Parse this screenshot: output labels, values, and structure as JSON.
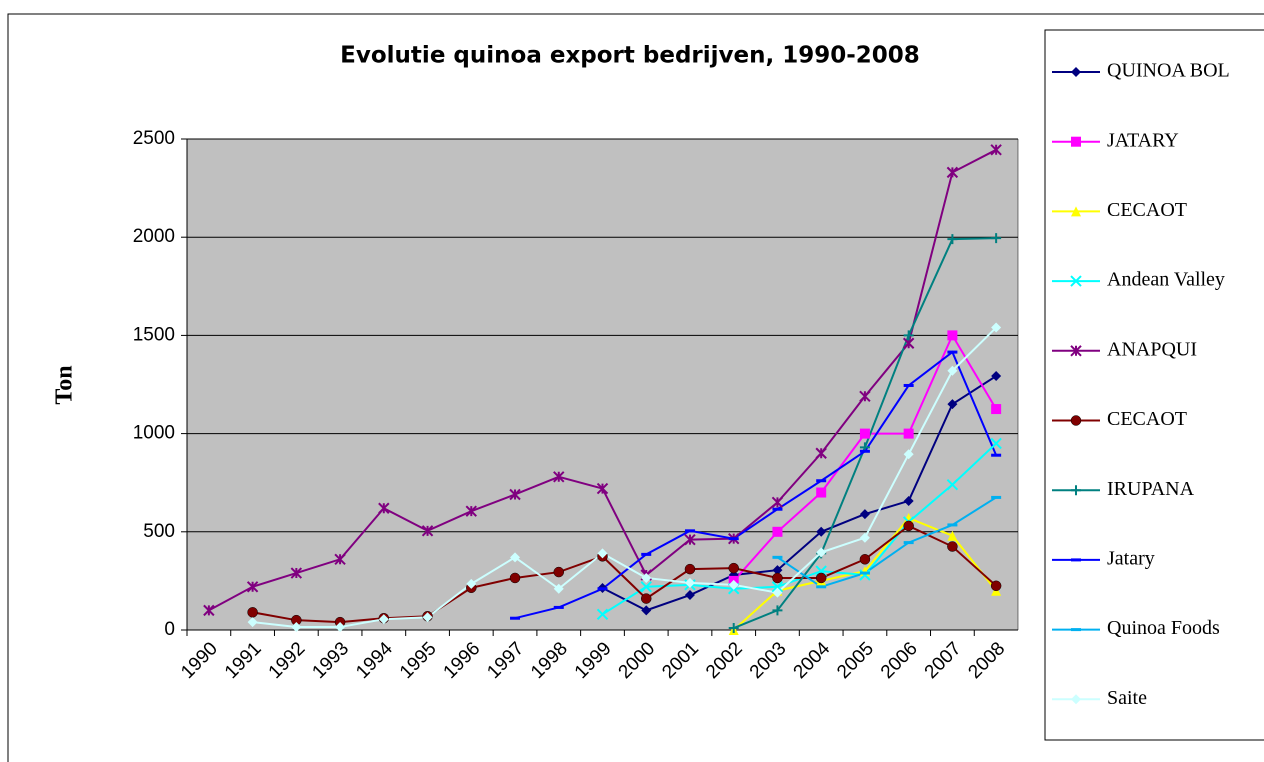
{
  "chart_data": {
    "type": "line",
    "title": "Evolutie quinoa export bedrijven, 1990-2008",
    "y_label": "Ton",
    "categories": [
      "1990",
      "1991",
      "1992",
      "1993",
      "1994",
      "1995",
      "1996",
      "1997",
      "1998",
      "1999",
      "2000",
      "2001",
      "2002",
      "2003",
      "2004",
      "2005",
      "2006",
      "2007",
      "2008"
    ],
    "ylim": [
      0,
      2500
    ],
    "yticks": [
      0,
      500,
      1000,
      1500,
      2000,
      2500
    ],
    "grid": true,
    "legend": "right",
    "series": [
      {
        "name": "QUINOA BOL",
        "color": "#000080",
        "marker": "diamond",
        "values": [
          null,
          null,
          null,
          null,
          null,
          null,
          null,
          null,
          null,
          214,
          100,
          178,
          280,
          305,
          500,
          590,
          657,
          1150,
          1293
        ]
      },
      {
        "name": "JATARY",
        "color": "#ff00ff",
        "marker": "square",
        "values": [
          null,
          null,
          null,
          null,
          null,
          null,
          null,
          null,
          null,
          null,
          null,
          null,
          250,
          500,
          700,
          1000,
          1000,
          1500,
          1125
        ]
      },
      {
        "name": "CECAOT",
        "color": "#ffff00",
        "marker": "triangle",
        "values": [
          null,
          null,
          null,
          null,
          null,
          null,
          null,
          null,
          null,
          null,
          null,
          null,
          0,
          200,
          250,
          300,
          570,
          480,
          200
        ]
      },
      {
        "name": "Andean Valley",
        "color": "#00ffff",
        "marker": "x",
        "values": [
          null,
          null,
          null,
          null,
          null,
          null,
          null,
          null,
          null,
          80,
          220,
          230,
          210,
          220,
          300,
          280,
          550,
          740,
          950
        ]
      },
      {
        "name": "ANAPQUI",
        "color": "#800080",
        "marker": "star",
        "values": [
          100,
          220,
          290,
          360,
          620,
          505,
          605,
          690,
          780,
          720,
          280,
          460,
          465,
          650,
          900,
          1190,
          1460,
          2330,
          2445
        ]
      },
      {
        "name": "CECAOT",
        "color": "#800000",
        "marker": "circle",
        "values": [
          null,
          90,
          50,
          40,
          60,
          70,
          215,
          265,
          295,
          375,
          160,
          310,
          315,
          265,
          265,
          360,
          530,
          425,
          225
        ]
      },
      {
        "name": "IRUPANA",
        "color": "#008080",
        "marker": "plus",
        "values": [
          null,
          null,
          null,
          null,
          null,
          null,
          null,
          null,
          null,
          null,
          null,
          null,
          10,
          100,
          390,
          930,
          1500,
          1990,
          1995
        ]
      },
      {
        "name": "Jatary",
        "color": "#0000ff",
        "marker": "dash",
        "values": [
          null,
          null,
          null,
          null,
          null,
          null,
          null,
          60,
          115,
          210,
          385,
          505,
          465,
          615,
          760,
          910,
          1245,
          1415,
          890
        ]
      },
      {
        "name": "Quinoa Foods",
        "color": "#00b0f0",
        "marker": "dash",
        "values": [
          null,
          null,
          null,
          null,
          null,
          null,
          null,
          null,
          null,
          null,
          null,
          null,
          null,
          370,
          220,
          290,
          445,
          535,
          675
        ]
      },
      {
        "name": "Saite",
        "color": "#ccffff",
        "marker": "diamond",
        "values": [
          null,
          40,
          15,
          15,
          55,
          65,
          235,
          370,
          210,
          390,
          265,
          240,
          230,
          190,
          395,
          470,
          895,
          1320,
          1540
        ]
      }
    ]
  }
}
